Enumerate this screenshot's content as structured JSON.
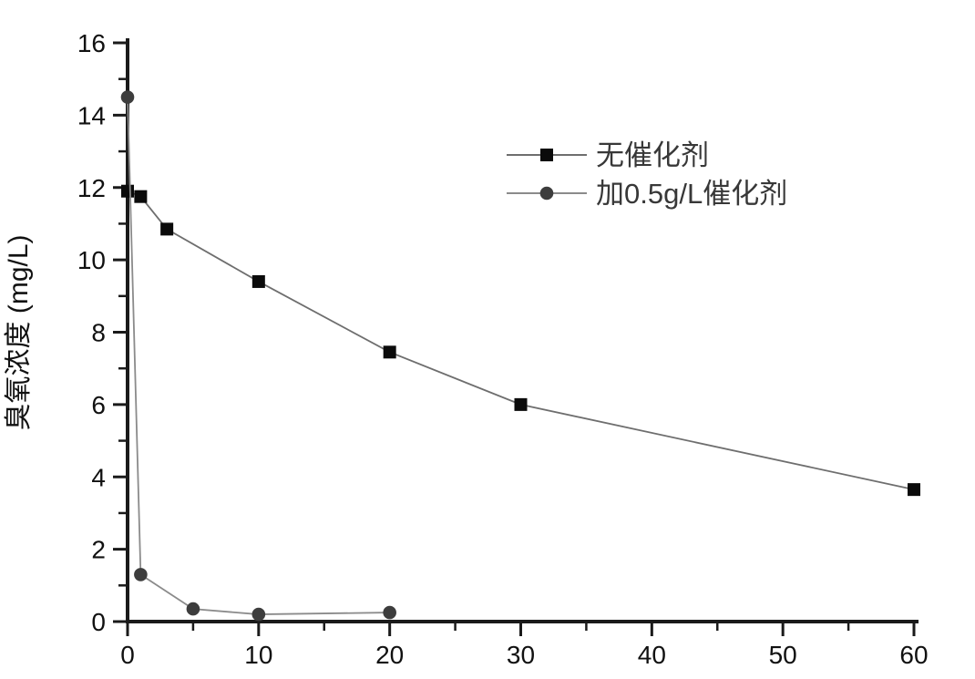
{
  "chart_data": {
    "type": "line",
    "title": "",
    "xlabel": "",
    "ylabel": "臭氧浓度 (mg/L)",
    "xlim": [
      0,
      60
    ],
    "ylim": [
      0,
      16
    ],
    "x_major_ticks": [
      0,
      10,
      20,
      30,
      40,
      50,
      60
    ],
    "x_minor_ticks": [
      5,
      15,
      25,
      35,
      45,
      55
    ],
    "y_major_ticks": [
      0,
      2,
      4,
      6,
      8,
      10,
      12,
      14,
      16
    ],
    "y_minor_ticks": [
      1,
      3,
      5,
      7,
      9,
      11,
      13,
      15
    ],
    "grid": false,
    "legend_position": "upper-center-inside",
    "axis_color": "#1a1a1a",
    "series": [
      {
        "name": "无催化剂",
        "marker": "square",
        "marker_color": "#0b0b0b",
        "line_color": "#6e6e6e",
        "x": [
          0,
          1,
          3,
          10,
          20,
          30,
          60
        ],
        "y": [
          11.9,
          11.75,
          10.85,
          9.4,
          7.45,
          6.0,
          3.65
        ]
      },
      {
        "name": "加0.5g/L催化剂",
        "marker": "circle",
        "marker_color": "#3d3d3d",
        "line_color": "#8b8b8b",
        "x": [
          0,
          1,
          5,
          10,
          20
        ],
        "y": [
          14.5,
          1.3,
          0.35,
          0.2,
          0.25
        ]
      }
    ]
  }
}
